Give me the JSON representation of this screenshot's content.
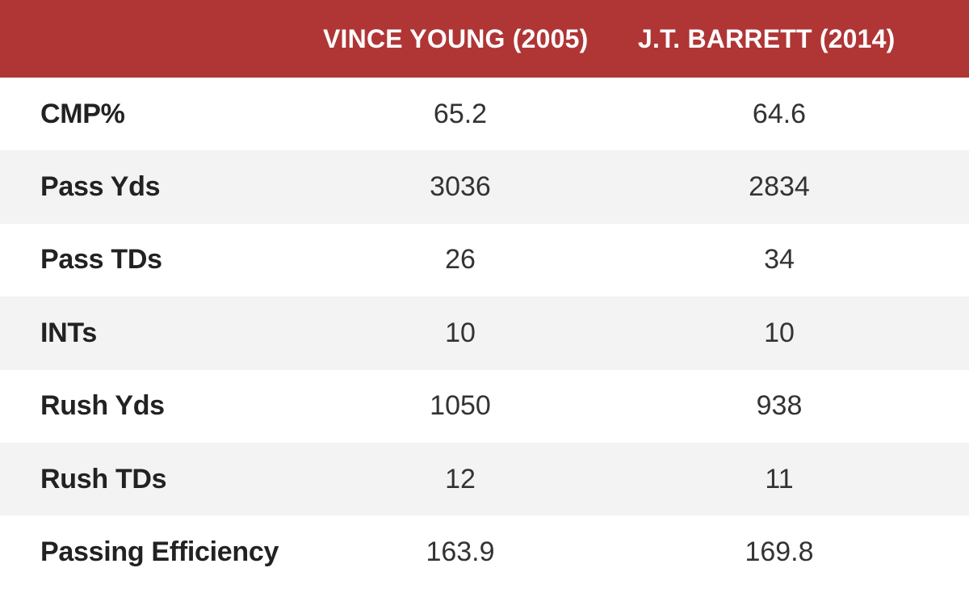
{
  "header": {
    "label_column": "",
    "player1": "VINCE YOUNG (2005)",
    "player2": "J.T. BARRETT (2014)"
  },
  "rows": [
    {
      "stat": "CMP%",
      "player1": "65.2",
      "player2": "64.6"
    },
    {
      "stat": "Pass Yds",
      "player1": "3036",
      "player2": "2834"
    },
    {
      "stat": "Pass TDs",
      "player1": "26",
      "player2": "34"
    },
    {
      "stat": "INTs",
      "player1": "10",
      "player2": "10"
    },
    {
      "stat": "Rush Yds",
      "player1": "1050",
      "player2": "938"
    },
    {
      "stat": "Rush TDs",
      "player1": "12",
      "player2": "11"
    },
    {
      "stat": "Passing Efficiency",
      "player1": "163.9",
      "player2": "169.8"
    }
  ],
  "colors": {
    "header_bg": "#b03535",
    "header_text": "#ffffff",
    "row_alt_bg": "#f3f3f3",
    "row_bg": "#ffffff"
  }
}
